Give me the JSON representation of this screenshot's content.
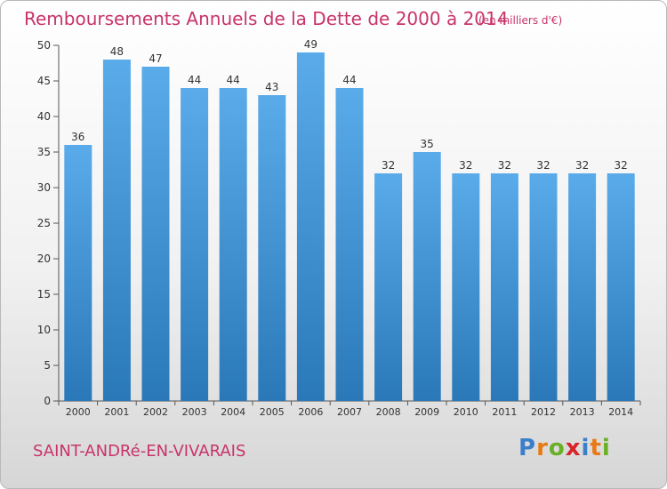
{
  "header": {
    "title": "Remboursements Annuels de la Dette de 2000 à 2014",
    "subtitle": "(en milliers d'€)"
  },
  "footer": {
    "commune": "SAINT-ANDRé-EN-VIVARAIS",
    "logo_letters": [
      "P",
      "r",
      "o",
      "x",
      "i",
      "t",
      "i"
    ]
  },
  "colors": {
    "bar_light": "#5aabea",
    "bar_dark": "#2a78b8",
    "title": "#c8336a",
    "logo": [
      "#3c7fc8",
      "#e87a16",
      "#6ab025",
      "#d6242a",
      "#3c7fc8",
      "#e87a16",
      "#6ab025"
    ]
  },
  "chart_data": {
    "type": "bar",
    "categories": [
      "2000",
      "2001",
      "2002",
      "2003",
      "2004",
      "2005",
      "2006",
      "2007",
      "2008",
      "2009",
      "2010",
      "2011",
      "2012",
      "2013",
      "2014"
    ],
    "values": [
      36,
      48,
      47,
      44,
      44,
      43,
      49,
      44,
      32,
      35,
      32,
      32,
      32,
      32,
      32
    ],
    "yticks": [
      0,
      5,
      10,
      15,
      20,
      25,
      30,
      35,
      40,
      45,
      50
    ],
    "ylim": [
      0,
      50
    ],
    "grid": false,
    "legend": false
  }
}
